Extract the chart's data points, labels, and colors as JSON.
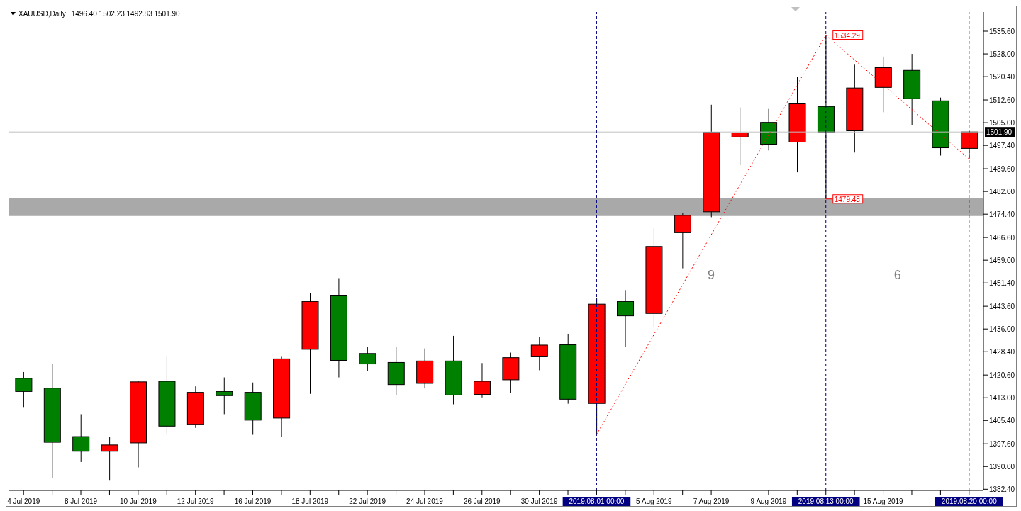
{
  "chart_data": {
    "type": "candlestick",
    "title": "XAUUSD,Daily",
    "subtitle": "1496.40 1502.23 1492.83 1501.90",
    "categories": [
      "4 Jul 2019",
      null,
      "8 Jul 2019",
      null,
      "10 Jul 2019",
      null,
      "12 Jul 2019",
      null,
      "16 Jul 2019",
      null,
      "18 Jul 2019",
      null,
      "22 Jul 2019",
      null,
      "24 Jul 2019",
      null,
      "26 Jul 2019",
      null,
      "30 Jul 2019",
      null,
      "2019.08.01 00:00",
      null,
      "5 Aug 2019",
      null,
      "7 Aug 2019",
      null,
      "9 Aug 2019",
      null,
      "2019.08.13 00:00",
      null,
      "15 Aug 2019",
      null,
      null,
      "2019.08.20 00:00"
    ],
    "ohlc": [
      [
        1419.5,
        1421.6,
        1409.9,
        1415.1
      ],
      [
        1416.2,
        1424.2,
        1386.2,
        1398.1
      ],
      [
        1400.0,
        1407.5,
        1391.5,
        1395.1
      ],
      [
        1395.1,
        1399.8,
        1385.5,
        1397.2
      ],
      [
        1397.9,
        1418.5,
        1389.7,
        1418.3
      ],
      [
        1418.5,
        1427.0,
        1400.6,
        1403.5
      ],
      [
        1404.1,
        1416.8,
        1402.9,
        1414.8
      ],
      [
        1415.1,
        1419.8,
        1407.5,
        1413.7
      ],
      [
        1414.8,
        1418.1,
        1400.6,
        1405.5
      ],
      [
        1406.2,
        1426.7,
        1399.9,
        1426.0
      ],
      [
        1429.2,
        1448.1,
        1414.3,
        1445.2
      ],
      [
        1447.3,
        1453.0,
        1419.8,
        1425.5
      ],
      [
        1427.8,
        1430.0,
        1421.9,
        1424.3
      ],
      [
        1424.8,
        1430.0,
        1414.0,
        1417.4
      ],
      [
        1417.8,
        1429.5,
        1416.1,
        1425.3
      ],
      [
        1425.3,
        1433.7,
        1410.8,
        1413.9
      ],
      [
        1414.1,
        1424.6,
        1413.1,
        1418.5
      ],
      [
        1419.0,
        1428.1,
        1414.7,
        1426.4
      ],
      [
        1426.7,
        1433.2,
        1422.2,
        1430.6
      ],
      [
        1430.7,
        1434.4,
        1411.0,
        1412.5
      ],
      [
        1411.1,
        1446.4,
        1400.7,
        1444.3
      ],
      [
        1445.2,
        1449.0,
        1430.0,
        1440.4
      ],
      [
        1441.2,
        1469.7,
        1436.5,
        1463.6
      ],
      [
        1468.2,
        1474.7,
        1456.3,
        1474.0
      ],
      [
        1475.2,
        1511.0,
        1473.4,
        1501.8
      ],
      [
        1500.2,
        1510.1,
        1490.8,
        1501.6
      ],
      [
        1505.1,
        1509.6,
        1495.7,
        1497.8
      ],
      [
        1498.5,
        1520.3,
        1488.4,
        1511.3
      ],
      [
        1510.4,
        1534.29,
        1479.48,
        1501.8
      ],
      [
        1502.3,
        1524.4,
        1495.0,
        1516.6
      ],
      [
        1516.8,
        1527.1,
        1508.5,
        1523.4
      ],
      [
        1522.5,
        1528.0,
        1504.1,
        1513.0
      ],
      [
        1512.3,
        1513.4,
        1494.0,
        1496.6
      ],
      [
        1496.4,
        1502.23,
        1492.83,
        1501.9
      ]
    ],
    "colors": [
      "#008000",
      "#008000",
      "#008000",
      "#ff0000",
      "#ff0000",
      "#008000",
      "#ff0000",
      "#008000",
      "#008000",
      "#ff0000",
      "#ff0000",
      "#008000",
      "#008000",
      "#008000",
      "#ff0000",
      "#008000",
      "#ff0000",
      "#ff0000",
      "#ff0000",
      "#008000",
      "#ff0000",
      "#008000",
      "#ff0000",
      "#ff0000",
      "#ff0000",
      "#ff0000",
      "#008000",
      "#ff0000",
      "#008000",
      "#ff0000",
      "#ff0000",
      "#008000",
      "#008000",
      "#ff0000"
    ],
    "series": [
      {
        "type": "line",
        "x": [
          "2019.08.01 00:00",
          "2019.08.13 00:00",
          "2019.08.20 00:00"
        ],
        "values": [
          1400.7,
          1534.29,
          1492.83
        ],
        "color": "#ff0000",
        "line_style": "dotted"
      }
    ],
    "ylim": [
      1382,
      1542
    ],
    "yticks": [
      {
        "value": 1382.4,
        "label": "1382.40"
      },
      {
        "value": 1390,
        "label": "1390.00"
      },
      {
        "value": 1397.6,
        "label": "1397.60"
      },
      {
        "value": 1405.4,
        "label": "1405.40"
      },
      {
        "value": 1413,
        "label": "1413.00"
      },
      {
        "value": 1420.6,
        "label": "1420.60"
      },
      {
        "value": 1428.4,
        "label": "1428.40"
      },
      {
        "value": 1436,
        "label": "1436.00"
      },
      {
        "value": 1443.6,
        "label": "1443.60"
      },
      {
        "value": 1451.4,
        "label": "1451.40"
      },
      {
        "value": 1459,
        "label": "1459.00"
      },
      {
        "value": 1466.6,
        "label": "1466.60"
      },
      {
        "value": 1474.4,
        "label": "1474.40"
      },
      {
        "value": 1482,
        "label": "1482.00"
      },
      {
        "value": 1489.6,
        "label": "1489.60"
      },
      {
        "value": 1497.4,
        "label": "1497.40"
      },
      {
        "value": 1505,
        "label": "1505.00"
      },
      {
        "value": 1512.6,
        "label": "1512.60"
      },
      {
        "value": 1520.4,
        "label": "1520.40"
      },
      {
        "value": 1528,
        "label": "1528.00"
      },
      {
        "value": 1535.6,
        "label": "1535.60"
      }
    ],
    "ref_lines": [
      {
        "axis": "y",
        "value": 1501.9,
        "label": "1501.90",
        "color": "#c0c0c0",
        "line_style": "solid"
      },
      {
        "axis": "x",
        "value": "2019.08.01 00:00",
        "color": "#000080",
        "line_style": "dashed"
      },
      {
        "axis": "x",
        "value": "2019.08.13 00:00",
        "color": "#000080",
        "line_style": "dashed"
      },
      {
        "axis": "x",
        "value": "2019.08.20 00:00",
        "color": "#000080",
        "line_style": "dashed"
      }
    ],
    "bands": [
      {
        "axis": "y",
        "from": 1473.8,
        "to": 1479.7,
        "color": "#a9a9a9"
      }
    ],
    "annotations": [
      {
        "text": "1534.29",
        "x": "2019.08.13 00:00",
        "y": 1534.29
      },
      {
        "text": "1479.48",
        "x": "2019.08.13 00:00",
        "y": 1479.48
      },
      "9",
      "6"
    ]
  }
}
